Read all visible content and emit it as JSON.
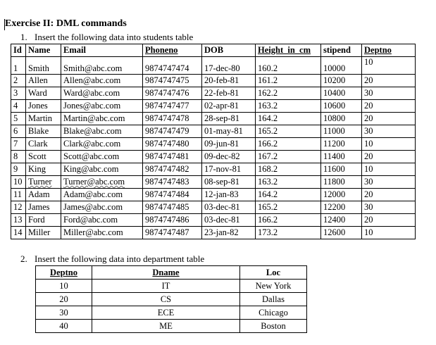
{
  "heading": "Exercise II: DML commands",
  "students_section": {
    "number": "1.",
    "title": "Insert the following data into students table"
  },
  "students_table": {
    "headers": [
      "Id",
      "Name",
      "Email",
      "Phoneno",
      "DOB",
      "Height_in_cm",
      "stipend",
      "Deptno"
    ],
    "rows": [
      [
        "1",
        "Smith",
        "Smith@abc.com",
        "9874747474",
        "17-dec-80",
        "160.2",
        "10000",
        "10"
      ],
      [
        "2",
        "Allen",
        "Allen@abc.com",
        "9874747475",
        "20-feb-81",
        "161.2",
        "10200",
        "20"
      ],
      [
        "3",
        "Ward",
        "Ward@abc.com",
        "9874747476",
        "22-feb-81",
        "162.2",
        "10400",
        "30"
      ],
      [
        "4",
        "Jones",
        "Jones@abc.com",
        "9874747477",
        "02-apr-81",
        "163.2",
        "10600",
        "20"
      ],
      [
        "5",
        "Martin",
        "Martin@abc.com",
        "9874747478",
        "28-sep-81",
        "164.2",
        "10800",
        "20"
      ],
      [
        "6",
        "Blake",
        "Blake@abc.com",
        "9874747479",
        "01-may-81",
        "165.2",
        "11000",
        "30"
      ],
      [
        "7",
        "Clark",
        "Clark@abc.com",
        "9874747480",
        "09-jun-81",
        "166.2",
        "11200",
        "10"
      ],
      [
        "8",
        "Scott",
        "Scott@abc.com",
        "9874747481",
        "09-dec-82",
        "167.2",
        "11400",
        "20"
      ],
      [
        "9",
        "King",
        "King@abc.com",
        "9874747482",
        "17-nov-81",
        "168.2",
        "11600",
        "10"
      ],
      [
        "10",
        "Turner",
        "Turner@abc.com",
        "9874747483",
        "08-sep-81",
        "163.2",
        "11800",
        "30"
      ],
      [
        "11",
        "Adam",
        "Adam@abc.com",
        "9874747484",
        "12-jan-83",
        "164.2",
        "12000",
        "20"
      ],
      [
        "12",
        "James",
        "James@abc.com",
        "9874747485",
        "03-dec-81",
        "165.2",
        "12200",
        "30"
      ],
      [
        "13",
        "Ford",
        "Ford@abc.com",
        "9874747486",
        "03-dec-81",
        "166.2",
        "12400",
        "20"
      ],
      [
        "14",
        "Miller",
        "Miller@abc.com",
        "9874747487",
        "23-jan-82",
        "173.2",
        "12600",
        "10"
      ]
    ]
  },
  "dept_section": {
    "number": "2.",
    "title": "Insert the following data into department  table"
  },
  "dept_table": {
    "headers": [
      "Deptno",
      "Dname",
      "Loc"
    ],
    "rows": [
      [
        "10",
        "IT",
        "New York"
      ],
      [
        "20",
        "CS",
        "Dallas"
      ],
      [
        "30",
        "ECE",
        "Chicago"
      ],
      [
        "40",
        "ME",
        "Boston"
      ]
    ]
  }
}
